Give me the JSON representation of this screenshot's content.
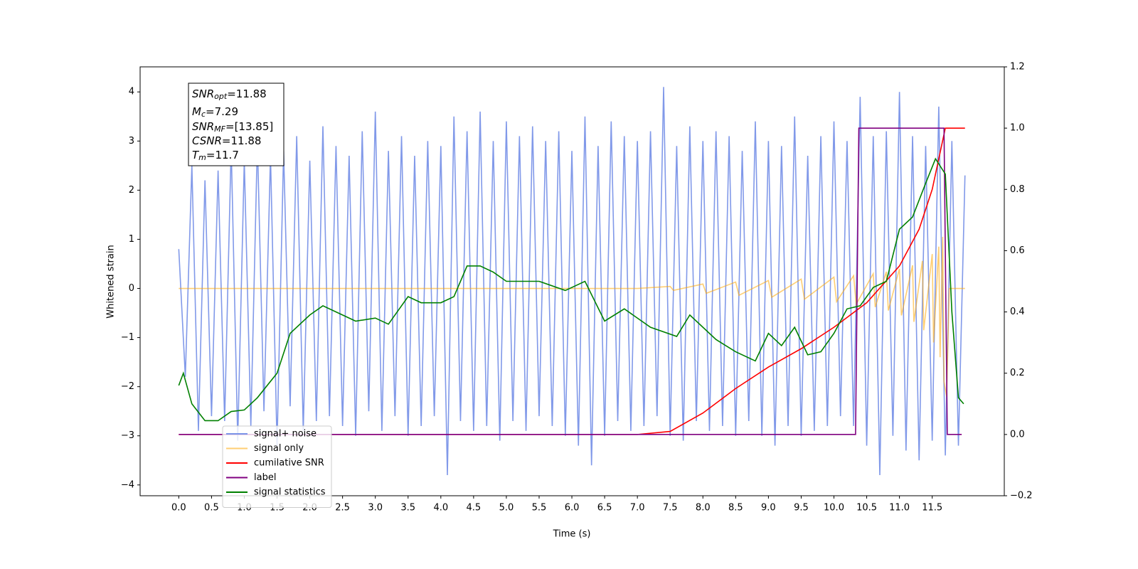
{
  "chart_data": {
    "type": "line",
    "x_label": "Time (s)",
    "y_label": "Whitened strain",
    "xlim": [
      -0.59,
      12.6
    ],
    "ylim": [
      -4.22,
      4.51
    ],
    "y2lim": [
      -0.2,
      1.2
    ],
    "xticks": [
      {
        "value": 0,
        "label": "0.0"
      },
      {
        "value": 0.5,
        "label": "0.5"
      },
      {
        "value": 1,
        "label": "1.0"
      },
      {
        "value": 1.5,
        "label": "1.5"
      },
      {
        "value": 2,
        "label": "2.0"
      },
      {
        "value": 2.5,
        "label": "2.5"
      },
      {
        "value": 3,
        "label": "3.0"
      },
      {
        "value": 3.5,
        "label": "3.5"
      },
      {
        "value": 4,
        "label": "4.0"
      },
      {
        "value": 4.5,
        "label": "4.5"
      },
      {
        "value": 5,
        "label": "5.0"
      },
      {
        "value": 5.5,
        "label": "5.5"
      },
      {
        "value": 6,
        "label": "6.0"
      },
      {
        "value": 6.5,
        "label": "6.5"
      },
      {
        "value": 7,
        "label": "7.0"
      },
      {
        "value": 7.5,
        "label": "7.5"
      },
      {
        "value": 8,
        "label": "8.0"
      },
      {
        "value": 8.5,
        "label": "8.5"
      },
      {
        "value": 9,
        "label": "9.0"
      },
      {
        "value": 9.5,
        "label": "9.5"
      },
      {
        "value": 10,
        "label": "10.0"
      },
      {
        "value": 10.5,
        "label": "10.5"
      },
      {
        "value": 11,
        "label": "11.0"
      },
      {
        "value": 11.5,
        "label": "11.5"
      }
    ],
    "yticks": [
      {
        "value": -4,
        "label": "−4"
      },
      {
        "value": -3,
        "label": "−3"
      },
      {
        "value": -2,
        "label": "−2"
      },
      {
        "value": -1,
        "label": "−1"
      },
      0,
      1,
      2,
      3,
      4
    ],
    "y2ticks": [
      {
        "value": -0.2,
        "label": "−0.2"
      },
      {
        "value": 0,
        "label": "0.0"
      },
      0.2,
      0.4,
      0.6,
      0.8,
      {
        "value": 1,
        "label": "1.0"
      },
      1.2
    ],
    "legend": "lower left",
    "annotations": [
      {
        "main": "SNR",
        "sub": "opt",
        "text": "=11.88"
      },
      {
        "main": "M",
        "sub": "c",
        "text": "=7.29"
      },
      {
        "main": "SNR",
        "sub": "MF",
        "text": "=[13.85]"
      },
      {
        "main": "CSNR",
        "text": "=11.88"
      },
      {
        "main": "T",
        "sub": "m",
        "text": "=11.7"
      }
    ],
    "series": [
      {
        "name": "signal+ noise",
        "color": "#7a93e8",
        "axis": "y",
        "x": [
          0,
          0.1,
          0.2,
          0.3,
          0.4,
          0.5,
          0.6,
          0.7,
          0.8,
          0.9,
          1,
          1.1,
          1.2,
          1.3,
          1.4,
          1.5,
          1.6,
          1.7,
          1.8,
          1.9,
          2,
          2.1,
          2.2,
          2.3,
          2.4,
          2.5,
          2.6,
          2.7,
          2.8,
          2.9,
          3,
          3.1,
          3.2,
          3.3,
          3.4,
          3.5,
          3.6,
          3.7,
          3.8,
          3.9,
          4,
          4.1,
          4.2,
          4.3,
          4.4,
          4.5,
          4.6,
          4.7,
          4.8,
          4.9,
          5,
          5.1,
          5.2,
          5.3,
          5.4,
          5.5,
          5.6,
          5.7,
          5.8,
          5.9,
          6,
          6.1,
          6.2,
          6.3,
          6.4,
          6.5,
          6.6,
          6.7,
          6.8,
          6.9,
          7,
          7.1,
          7.2,
          7.3,
          7.4,
          7.5,
          7.6,
          7.7,
          7.8,
          7.9,
          8,
          8.1,
          8.2,
          8.3,
          8.4,
          8.5,
          8.6,
          8.7,
          8.8,
          8.9,
          9,
          9.1,
          9.2,
          9.3,
          9.4,
          9.5,
          9.6,
          9.7,
          9.8,
          9.9,
          10,
          10.1,
          10.2,
          10.3,
          10.4,
          10.5,
          10.6,
          10.7,
          10.8,
          10.9,
          11,
          11.1,
          11.2,
          11.3,
          11.4,
          11.5,
          11.6,
          11.7,
          11.8,
          11.9,
          12
        ],
        "values": [
          0.8,
          -1.8,
          2.5,
          -2.9,
          2.2,
          -2.6,
          2.4,
          -2.7,
          2.9,
          -3.1,
          2.6,
          -2.8,
          3.0,
          -2.5,
          2.7,
          -3.2,
          2.8,
          -2.4,
          3.1,
          -2.9,
          2.6,
          -2.7,
          3.3,
          -2.6,
          2.9,
          -2.8,
          2.7,
          -3.0,
          3.2,
          -2.5,
          3.6,
          -2.9,
          2.8,
          -2.6,
          3.1,
          -3.0,
          2.7,
          -2.8,
          3.0,
          -2.6,
          2.9,
          -3.8,
          3.5,
          -2.7,
          3.2,
          -2.9,
          3.6,
          -2.8,
          3.0,
          -3.1,
          3.4,
          -2.7,
          3.1,
          -2.9,
          3.3,
          -2.6,
          3.0,
          -2.8,
          3.2,
          -3.0,
          2.8,
          -3.2,
          3.5,
          -3.6,
          2.9,
          -3.0,
          3.4,
          -2.7,
          3.1,
          -2.9,
          3.0,
          -2.8,
          3.2,
          -2.6,
          4.1,
          -3.0,
          2.9,
          -3.1,
          3.3,
          -2.7,
          3.0,
          -2.9,
          3.2,
          -2.8,
          3.1,
          -3.0,
          2.8,
          -2.7,
          3.4,
          -3.0,
          3.0,
          -3.2,
          2.9,
          -2.8,
          3.5,
          -3.0,
          2.7,
          -2.9,
          3.1,
          -2.8,
          3.4,
          -2.6,
          3.0,
          -2.8,
          3.9,
          -3.2,
          3.1,
          -3.8,
          3.2,
          -3.0,
          4.0,
          -3.3,
          3.1,
          -3.5,
          2.9,
          -3.1,
          3.7,
          -3.4,
          3.0,
          -3.2,
          2.3
        ]
      },
      {
        "name": "signal only",
        "color": "#ffa500",
        "axis": "y",
        "x": [
          0,
          7.0,
          7.5,
          7.55,
          8.0,
          8.05,
          8.5,
          8.55,
          9.0,
          9.05,
          9.5,
          9.55,
          10.0,
          10.04,
          10.3,
          10.34,
          10.6,
          10.63,
          10.8,
          10.83,
          11.0,
          11.03,
          11.2,
          11.22,
          11.35,
          11.37,
          11.5,
          11.52,
          11.6,
          11.62,
          11.66,
          11.68,
          11.72,
          11.76,
          12.0
        ],
        "values": [
          0,
          0,
          0.04,
          -0.04,
          0.09,
          -0.1,
          0.13,
          -0.14,
          0.16,
          -0.18,
          0.19,
          -0.22,
          0.23,
          -0.27,
          0.26,
          -0.32,
          0.3,
          -0.38,
          0.34,
          -0.45,
          0.4,
          -0.55,
          0.47,
          -0.68,
          0.56,
          -0.85,
          0.7,
          -1.1,
          0.85,
          -1.4,
          1.05,
          -1.9,
          -2.2,
          0,
          0
        ]
      },
      {
        "name": "cumilative SNR",
        "color": "#ff0000",
        "axis": "y2",
        "x": [
          0,
          7.0,
          7.5,
          8.0,
          8.5,
          9.0,
          9.5,
          10.0,
          10.5,
          11.0,
          11.3,
          11.5,
          11.7,
          12.0
        ],
        "values": [
          0,
          0,
          0.01,
          0.07,
          0.15,
          0.22,
          0.28,
          0.35,
          0.43,
          0.55,
          0.67,
          0.8,
          1.0,
          1.0
        ]
      },
      {
        "name": "label",
        "color": "#800080",
        "axis": "y2",
        "x": [
          0,
          10.33,
          10.38,
          11.68,
          11.73,
          11.95
        ],
        "values": [
          0,
          0,
          1,
          1,
          0,
          0
        ]
      },
      {
        "name": "signal statistics",
        "color": "#008000",
        "axis": "y2",
        "x": [
          0,
          0.07,
          0.2,
          0.4,
          0.6,
          0.8,
          1.0,
          1.2,
          1.5,
          1.7,
          2.0,
          2.2,
          2.5,
          2.7,
          3.0,
          3.2,
          3.5,
          3.7,
          4.0,
          4.2,
          4.4,
          4.6,
          4.8,
          5.0,
          5.5,
          5.9,
          6.2,
          6.5,
          6.8,
          7.2,
          7.6,
          7.8,
          8.2,
          8.5,
          8.8,
          9.0,
          9.2,
          9.4,
          9.6,
          9.8,
          10.0,
          10.2,
          10.4,
          10.6,
          10.8,
          11.0,
          11.2,
          11.4,
          11.55,
          11.7,
          11.8,
          11.9,
          11.98
        ],
        "values": [
          0.16,
          0.2,
          0.1,
          0.045,
          0.045,
          0.075,
          0.08,
          0.12,
          0.2,
          0.33,
          0.39,
          0.42,
          0.39,
          0.37,
          0.38,
          0.36,
          0.45,
          0.43,
          0.43,
          0.45,
          0.55,
          0.55,
          0.53,
          0.5,
          0.5,
          0.47,
          0.5,
          0.37,
          0.41,
          0.35,
          0.32,
          0.39,
          0.31,
          0.27,
          0.24,
          0.33,
          0.29,
          0.35,
          0.26,
          0.27,
          0.33,
          0.41,
          0.42,
          0.48,
          0.5,
          0.67,
          0.71,
          0.82,
          0.9,
          0.85,
          0.4,
          0.12,
          0.1
        ]
      }
    ]
  }
}
